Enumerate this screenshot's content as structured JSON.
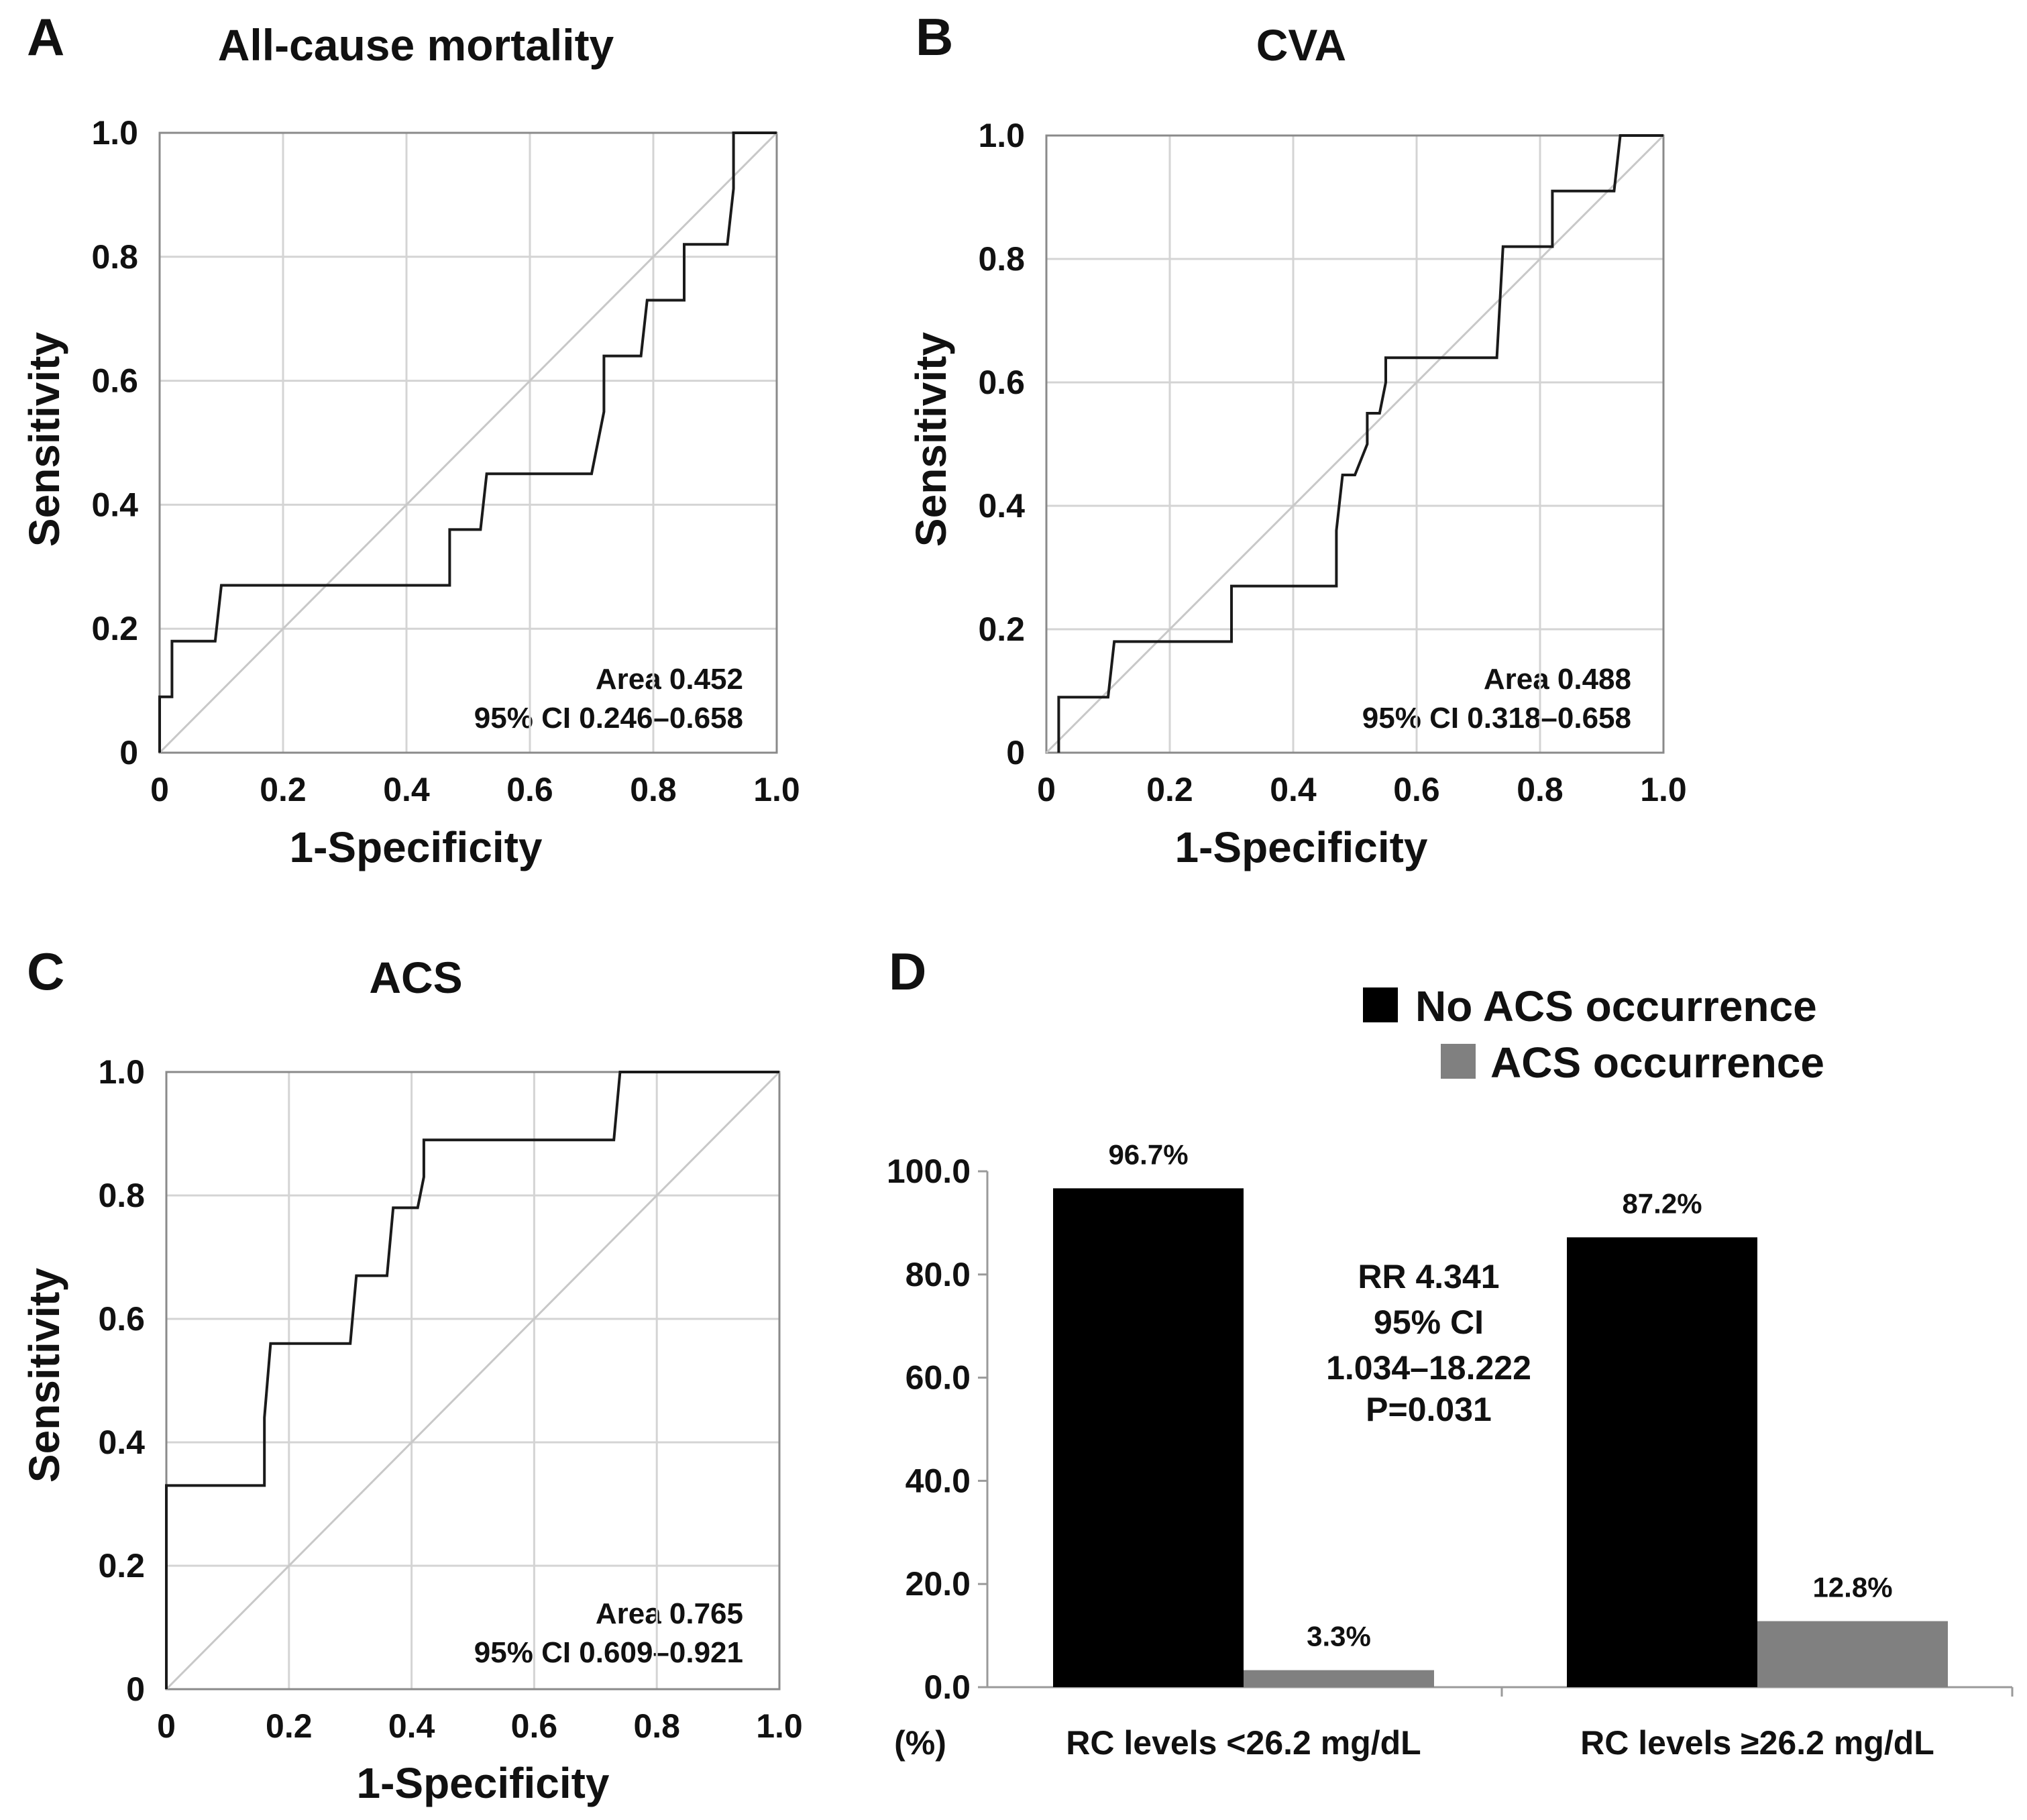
{
  "chart_data": [
    {
      "panel": "A",
      "type": "line",
      "title": "All-cause mortality",
      "xlabel": "1-Specificity",
      "ylabel": "Sensitivity",
      "xlim": [
        0,
        1
      ],
      "ylim": [
        0,
        1
      ],
      "xticks": [
        "0",
        "0.2",
        "0.4",
        "0.6",
        "0.8",
        "1.0"
      ],
      "yticks": [
        "0",
        "0.2",
        "0.4",
        "0.6",
        "0.8",
        "1.0"
      ],
      "grid": true,
      "reference_line": true,
      "annotation": [
        "Area 0.452",
        "95% CI 0.246–0.658"
      ],
      "series": [
        {
          "name": "ROC",
          "x": [
            0,
            0,
            0.02,
            0.02,
            0.09,
            0.1,
            0.47,
            0.47,
            0.52,
            0.53,
            0.7,
            0.72,
            0.72,
            0.73,
            0.78,
            0.79,
            0.85,
            0.85,
            0.92,
            0.93,
            0.93,
            1.0
          ],
          "y": [
            0,
            0.09,
            0.09,
            0.18,
            0.18,
            0.27,
            0.27,
            0.36,
            0.36,
            0.45,
            0.45,
            0.55,
            0.64,
            0.64,
            0.64,
            0.73,
            0.73,
            0.82,
            0.82,
            0.91,
            1.0,
            1.0
          ]
        }
      ]
    },
    {
      "panel": "B",
      "type": "line",
      "title": "CVA",
      "xlabel": "1-Specificity",
      "ylabel": "Sensitivity",
      "xlim": [
        0,
        1
      ],
      "ylim": [
        0,
        1
      ],
      "xticks": [
        "0",
        "0.2",
        "0.4",
        "0.6",
        "0.8",
        "1.0"
      ],
      "yticks": [
        "0",
        "0.2",
        "0.4",
        "0.6",
        "0.8",
        "1.0"
      ],
      "grid": true,
      "reference_line": true,
      "annotation": [
        "Area 0.488",
        "95% CI 0.318–0.658"
      ],
      "series": [
        {
          "name": "ROC",
          "x": [
            0.02,
            0.02,
            0.1,
            0.11,
            0.3,
            0.3,
            0.47,
            0.47,
            0.48,
            0.5,
            0.5,
            0.52,
            0.52,
            0.54,
            0.55,
            0.55,
            0.73,
            0.74,
            0.82,
            0.82,
            0.92,
            0.93,
            1.0
          ],
          "y": [
            0,
            0.09,
            0.09,
            0.18,
            0.18,
            0.27,
            0.27,
            0.36,
            0.45,
            0.45,
            0.45,
            0.5,
            0.55,
            0.55,
            0.6,
            0.64,
            0.64,
            0.82,
            0.82,
            0.91,
            0.91,
            1.0,
            1.0
          ]
        }
      ]
    },
    {
      "panel": "C",
      "type": "line",
      "title": "ACS",
      "xlabel": "1-Specificity",
      "ylabel": "Sensitivity",
      "xlim": [
        0,
        1
      ],
      "ylim": [
        0,
        1
      ],
      "xticks": [
        "0",
        "0.2",
        "0.4",
        "0.6",
        "0.8",
        "1.0"
      ],
      "yticks": [
        "0",
        "0.2",
        "0.4",
        "0.6",
        "0.8",
        "1.0"
      ],
      "grid": true,
      "reference_line": true,
      "annotation": [
        "Area 0.765",
        "95% CI 0.609–0.921"
      ],
      "series": [
        {
          "name": "ROC",
          "x": [
            0,
            0,
            0.16,
            0.16,
            0.17,
            0.3,
            0.31,
            0.36,
            0.37,
            0.41,
            0.42,
            0.42,
            0.73,
            0.74,
            1.0
          ],
          "y": [
            0,
            0.33,
            0.33,
            0.44,
            0.56,
            0.56,
            0.67,
            0.67,
            0.78,
            0.78,
            0.83,
            0.89,
            0.89,
            1.0,
            1.0
          ]
        }
      ]
    },
    {
      "panel": "D",
      "type": "bar",
      "title": "",
      "ylabel": "(%)",
      "ylim": [
        0,
        100
      ],
      "yticks": [
        "0.0",
        "20.0",
        "40.0",
        "60.0",
        "80.0",
        "100.0"
      ],
      "categories": [
        "RC levels <26.2 mg/dL",
        "RC levels ≥26.2 mg/dL"
      ],
      "series": [
        {
          "name": "No ACS occurrence",
          "color": "#000000",
          "values": [
            96.7,
            87.2
          ],
          "labels": [
            "96.7%",
            "87.2%"
          ]
        },
        {
          "name": "ACS occurrence",
          "color": "#808080",
          "values": [
            3.3,
            12.8
          ],
          "labels": [
            "3.3%",
            "12.8%"
          ]
        }
      ],
      "legend_position": "top-right",
      "annotation": [
        "RR 4.341",
        "95% CI",
        "1.034–18.222",
        "P=0.031"
      ]
    }
  ]
}
